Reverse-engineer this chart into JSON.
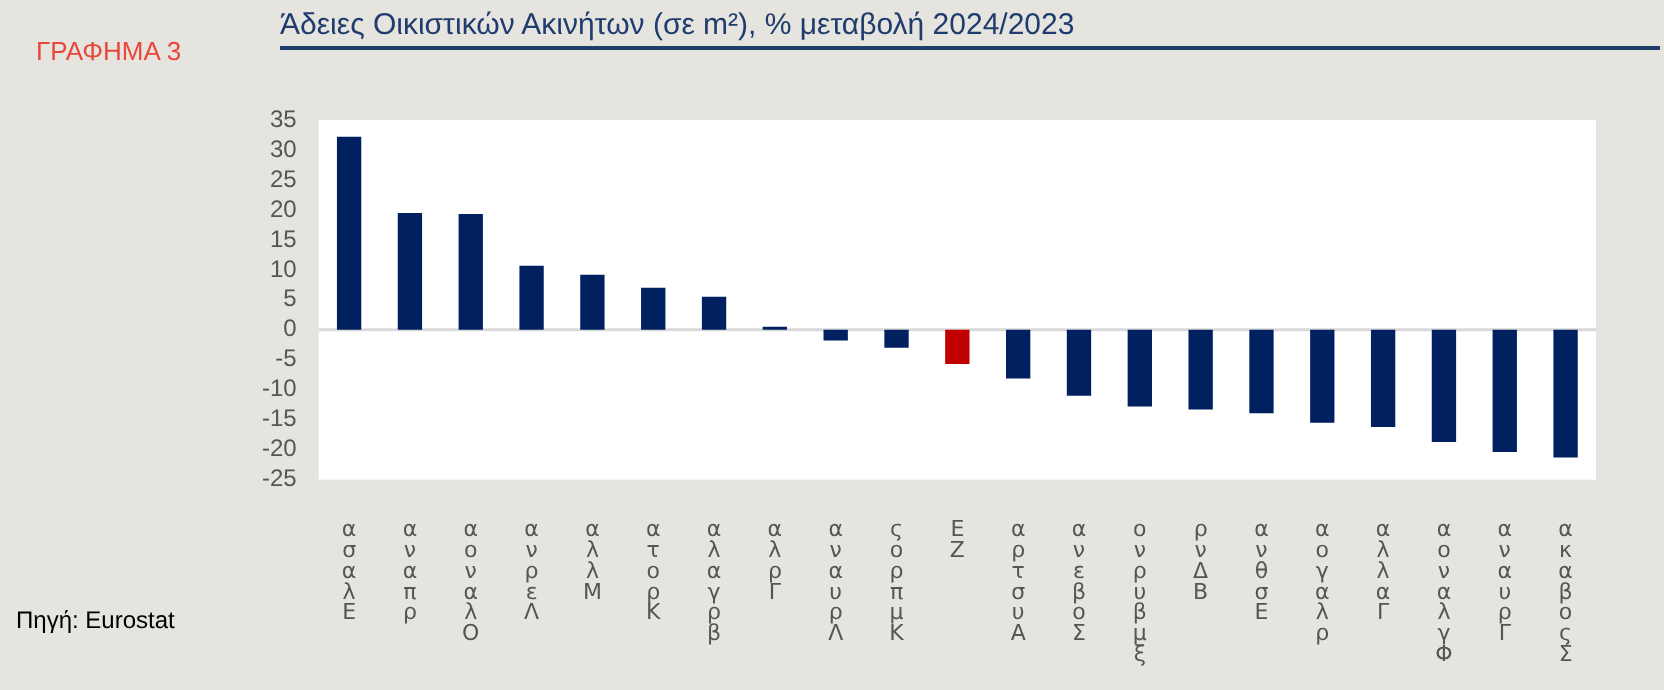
{
  "chart_data": {
    "type": "bar",
    "title": "Άδειες Οικιστικών Ακινήτων (σε m²), % μεταβολή 2024/2023",
    "annotations": [
      "ΓΡΑΦΗΜΑ 3",
      "Πηγή: Eurostat"
    ],
    "categories": [
      "ασαλΕ",
      "αναπρ",
      "αοναλΟ",
      "ανρεΛ",
      "αλλΜ",
      "ατορΚ",
      "αλαγρβ",
      "αλρΓ",
      "αναυρΛ",
      "ςορπμΚ",
      "ΕΖ",
      "αρτσυΑ",
      "ανεβοΣ",
      "ονρυβμξ",
      "ρνΔΒ",
      "ανθσΕ",
      "αογαλρ",
      "αλλαΓ",
      "αοναλγΦ",
      "αναυρΓ",
      "ακαβοςΣ"
    ],
    "values": [
      32.2,
      19.5,
      19.3,
      10.7,
      9.2,
      7.0,
      5.5,
      0.5,
      -1.8,
      -3.0,
      -5.7,
      -8.1,
      -11.0,
      -12.8,
      -13.3,
      -13.9,
      -15.5,
      -16.2,
      -18.7,
      -20.4,
      -21.3
    ],
    "colors": [
      "#002060",
      "#002060",
      "#002060",
      "#002060",
      "#002060",
      "#002060",
      "#002060",
      "#002060",
      "#002060",
      "#002060",
      "#c00000",
      "#002060",
      "#002060",
      "#002060",
      "#002060",
      "#002060",
      "#002060",
      "#002060",
      "#002060",
      "#002060",
      "#002060"
    ],
    "ylim": [
      -25,
      35
    ],
    "yticks": [
      -25,
      -20,
      -15,
      -10,
      -5,
      0,
      5,
      10,
      15,
      20,
      25,
      30,
      35
    ],
    "ref_lines": [
      {
        "axis": "y",
        "value": 0,
        "color": "#d9d9d9"
      }
    ],
    "legend": false
  }
}
